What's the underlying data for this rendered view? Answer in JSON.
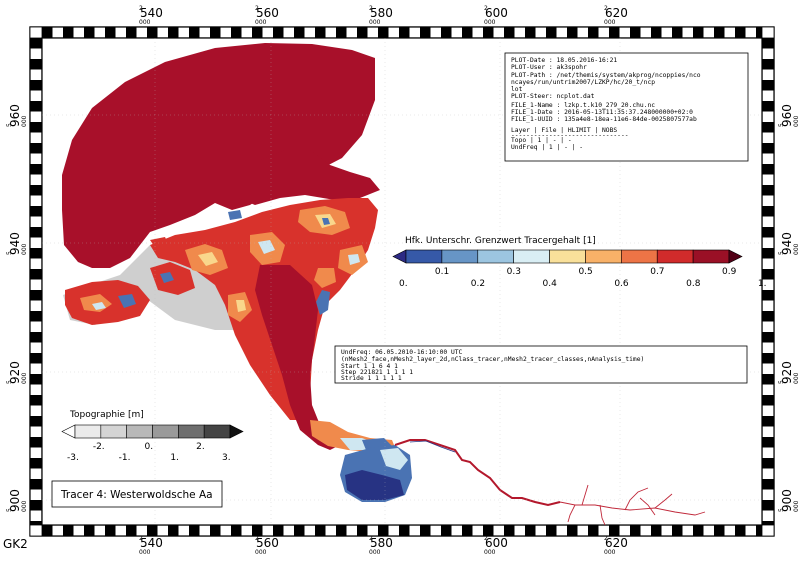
{
  "projection_label": "GK2",
  "axes": {
    "x_ticks": [
      {
        "main": "2",
        "value": "540",
        "sub": "000"
      },
      {
        "main": "2",
        "value": "560",
        "sub": "000"
      },
      {
        "main": "2",
        "value": "580",
        "sub": "000"
      },
      {
        "main": "2",
        "value": "600",
        "sub": "000"
      },
      {
        "main": "2",
        "value": "620",
        "sub": "000"
      }
    ],
    "y_ticks": [
      {
        "main": "5",
        "value": "960",
        "sub": "000"
      },
      {
        "main": "5",
        "value": "940",
        "sub": "000"
      },
      {
        "main": "5",
        "value": "920",
        "sub": "000"
      },
      {
        "main": "5",
        "value": "900",
        "sub": "000"
      }
    ]
  },
  "plot_info": {
    "lines": [
      "PLOT-Date : 18.05.2016-16:21",
      "PLOT-User : ak3spohr",
      "PLOT-Path : /net/themis/system/akprog/ncoppies/nco",
      "            ncayes/run/untrim2007/LZKP/hc/20_t/ncp",
      "            lot",
      "PLOT-Steer: ncplot.dat",
      "",
      "FILE_1-Name : lzkp.t.k10_279_20.chu.nc",
      "FILE_1-Date : 2016-05-13T11:35:37.248000000+02:0",
      "FILE_1-UUID : 135a4e8-18ea-11e6-84de-0025807577ab",
      "",
      "Layer   | File | HLIMIT | NOBS",
      "-------------------------------",
      "Topo    |  1   |   -    |  -",
      "UndFreq |  1   |   -    |  -"
    ]
  },
  "tracer_colorbar": {
    "title": "Hfk. Unterschr. Grenzwert Tracergehalt [1]",
    "colors": [
      "#2c2a84",
      "#3659a8",
      "#6795c6",
      "#9cc5e0",
      "#d9eef4",
      "#f9e09a",
      "#f8b168",
      "#ed7446",
      "#d12b2b",
      "#9a1026",
      "#520016"
    ],
    "upper_labels": [
      "0.1",
      "0.3",
      "0.5",
      "0.7",
      "0.9"
    ],
    "lower_labels": [
      "0.",
      "0.2",
      "0.4",
      "0.6",
      "0.8",
      "1."
    ]
  },
  "undfreq_info": {
    "lines": [
      "UndFreq: 06.05.2010-16:10:00 UTC",
      "(nMesh2_face,nMesh2_layer_2d,nClass_tracer,nMesh2_tracer_classes,nAnalysis_time)",
      "Start        1       1       6       4       1",
      "Step    221821       1       1       1       1",
      "Stride       1       1       1       1       1"
    ]
  },
  "topo_colorbar": {
    "title": "Topographie [m]",
    "colors": [
      "#ffffff",
      "#ebebeb",
      "#d4d4d4",
      "#b8b8b8",
      "#9a9a9a",
      "#6e6e6e",
      "#444444",
      "#111111"
    ],
    "upper_labels": [
      "-2.",
      "0.",
      "2."
    ],
    "lower_labels": [
      "-3.",
      "-1.",
      "1.",
      "3."
    ]
  },
  "tracer_label": "Tracer 4: Westerwoldsche Aa",
  "map_colors": {
    "saturated": "#a8102a",
    "mid": "#d8322c",
    "orange": "#f08a4c",
    "yellow": "#f9d78c",
    "light": "#cfe7f1",
    "blue": "#4a73b3",
    "navy": "#273383",
    "gray": "#c9c9c9",
    "river": "#b3182c"
  }
}
